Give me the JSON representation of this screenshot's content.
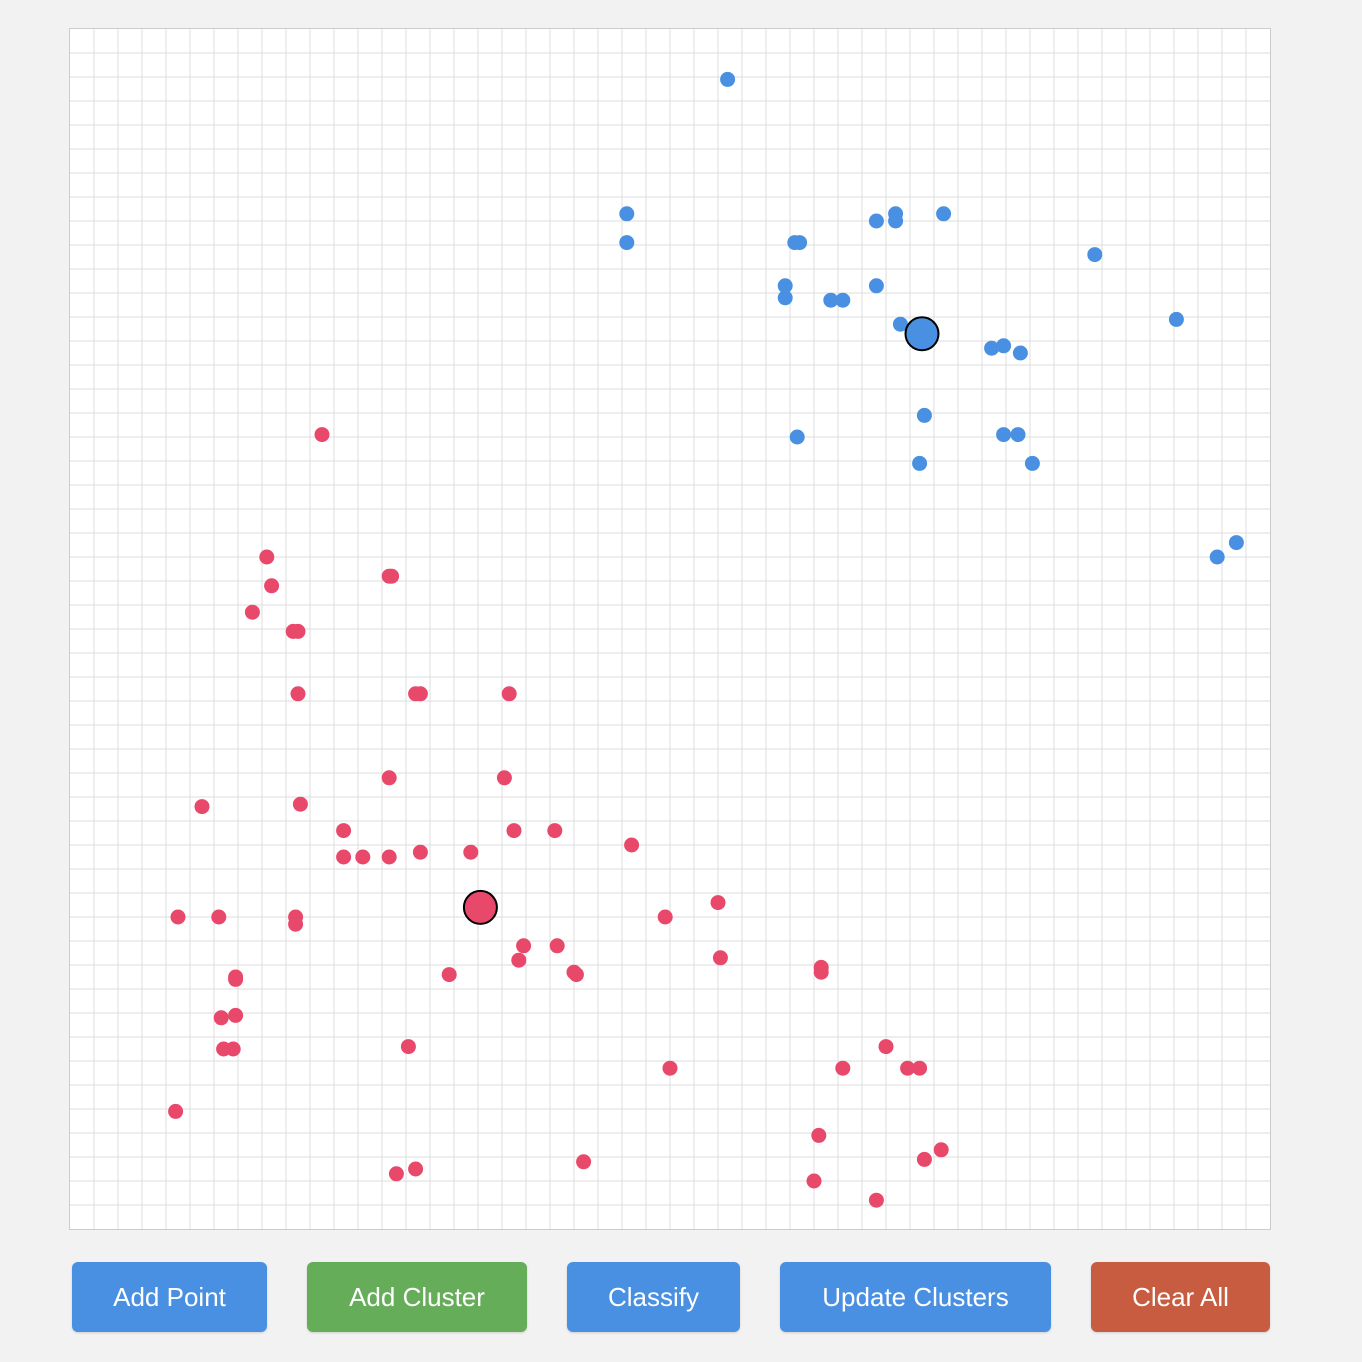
{
  "colors": {
    "background": "#f2f2f2",
    "canvas": "#ffffff",
    "grid": "#dddddd",
    "cluster_a": "#4a90e2",
    "cluster_b": "#e8496a",
    "button_blue": "#4a90e2",
    "button_green": "#66ad5a",
    "button_red": "#c85c40"
  },
  "toolbar": {
    "add_point_label": "Add Point",
    "add_cluster_label": "Add Cluster",
    "classify_label": "Classify",
    "update_clusters_label": "Update Clusters",
    "clear_all_label": "Clear All"
  },
  "grid": {
    "columns": 50,
    "rows": 50
  },
  "chart_data": {
    "type": "scatter",
    "xlim": [
      0,
      50
    ],
    "ylim": [
      0,
      50
    ],
    "grid": true,
    "series": [
      {
        "color": "#4a90e2",
        "centroid": [
          35.5,
          37.3
        ],
        "points": [
          [
            27.4,
            47.9
          ],
          [
            23.2,
            42.3
          ],
          [
            23.2,
            41.1
          ],
          [
            30.2,
            41.1
          ],
          [
            30.4,
            41.1
          ],
          [
            33.6,
            42.0
          ],
          [
            34.4,
            42.3
          ],
          [
            34.4,
            42.0
          ],
          [
            36.4,
            42.3
          ],
          [
            42.7,
            40.6
          ],
          [
            29.8,
            39.3
          ],
          [
            29.8,
            38.8
          ],
          [
            31.7,
            38.7
          ],
          [
            32.2,
            38.7
          ],
          [
            33.6,
            39.3
          ],
          [
            34.6,
            37.7
          ],
          [
            38.4,
            36.7
          ],
          [
            38.9,
            36.8
          ],
          [
            39.6,
            36.5
          ],
          [
            46.1,
            37.9
          ],
          [
            35.6,
            33.9
          ],
          [
            30.3,
            33.0
          ],
          [
            38.9,
            33.1
          ],
          [
            39.5,
            33.1
          ],
          [
            35.4,
            31.9
          ],
          [
            40.1,
            31.9
          ],
          [
            47.8,
            28.0
          ],
          [
            48.6,
            28.6
          ]
        ]
      },
      {
        "color": "#e8496a",
        "centroid": [
          17.1,
          13.4
        ],
        "points": [
          [
            10.5,
            33.1
          ],
          [
            8.2,
            28.0
          ],
          [
            13.3,
            27.2
          ],
          [
            13.4,
            27.2
          ],
          [
            8.4,
            26.8
          ],
          [
            7.6,
            25.7
          ],
          [
            9.3,
            24.9
          ],
          [
            9.5,
            24.9
          ],
          [
            14.4,
            22.3
          ],
          [
            14.6,
            22.3
          ],
          [
            18.3,
            22.3
          ],
          [
            9.5,
            22.3
          ],
          [
            13.3,
            18.8
          ],
          [
            18.1,
            18.8
          ],
          [
            5.5,
            17.6
          ],
          [
            9.6,
            17.7
          ],
          [
            11.4,
            16.6
          ],
          [
            18.5,
            16.6
          ],
          [
            20.2,
            16.6
          ],
          [
            11.4,
            15.5
          ],
          [
            12.2,
            15.5
          ],
          [
            13.3,
            15.5
          ],
          [
            14.6,
            15.7
          ],
          [
            16.7,
            15.7
          ],
          [
            23.4,
            16.0
          ],
          [
            4.5,
            13.0
          ],
          [
            6.2,
            13.0
          ],
          [
            9.4,
            13.0
          ],
          [
            9.4,
            12.7
          ],
          [
            24.8,
            13.0
          ],
          [
            27.0,
            13.6
          ],
          [
            18.9,
            11.8
          ],
          [
            20.3,
            11.8
          ],
          [
            18.7,
            11.2
          ],
          [
            27.1,
            11.3
          ],
          [
            21.0,
            10.7
          ],
          [
            21.1,
            10.6
          ],
          [
            31.3,
            10.9
          ],
          [
            31.3,
            10.7
          ],
          [
            6.9,
            10.5
          ],
          [
            6.9,
            10.4
          ],
          [
            15.8,
            10.6
          ],
          [
            6.3,
            8.8
          ],
          [
            6.9,
            8.9
          ],
          [
            6.4,
            7.5
          ],
          [
            6.8,
            7.5
          ],
          [
            14.1,
            7.6
          ],
          [
            25.0,
            6.7
          ],
          [
            32.2,
            6.7
          ],
          [
            34.0,
            7.6
          ],
          [
            34.9,
            6.7
          ],
          [
            35.4,
            6.7
          ],
          [
            4.4,
            4.9
          ],
          [
            31.2,
            3.9
          ],
          [
            36.3,
            3.3
          ],
          [
            35.6,
            2.9
          ],
          [
            13.6,
            2.3
          ],
          [
            14.4,
            2.5
          ],
          [
            21.4,
            2.8
          ],
          [
            31.0,
            2.0
          ],
          [
            33.6,
            1.2
          ]
        ]
      }
    ]
  }
}
